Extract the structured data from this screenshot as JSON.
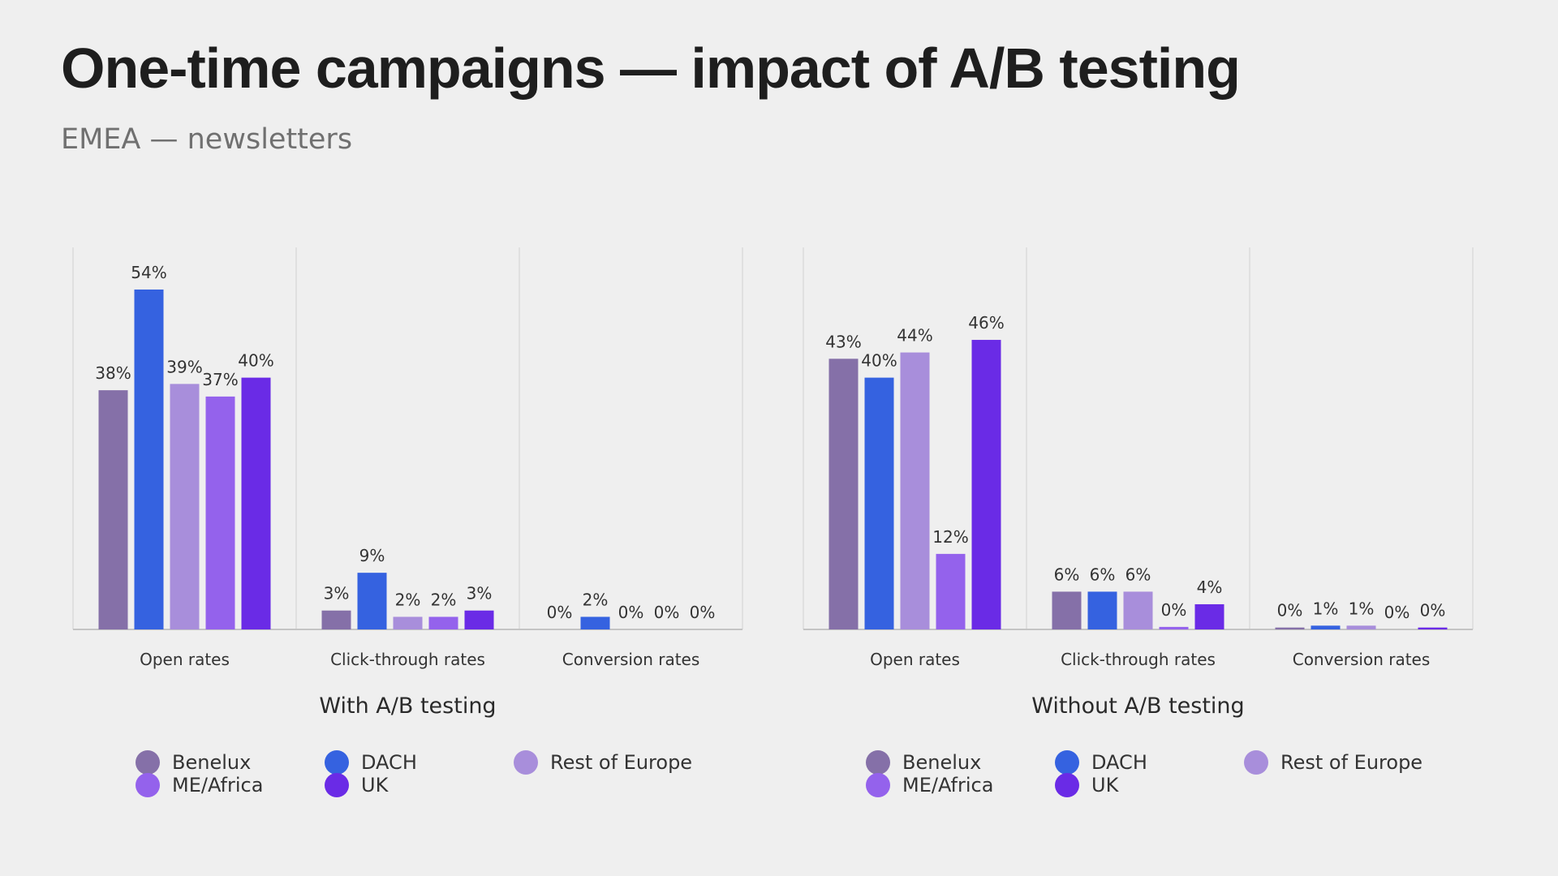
{
  "title": "One-time campaigns — impact of A/B testing",
  "subtitle": "EMEA — newsletters",
  "chart_data": [
    {
      "type": "bar",
      "panel_label": "With A/B testing",
      "categories": [
        "Open rates",
        "Click-through rates",
        "Conversion rates"
      ],
      "ylim": [
        0,
        60
      ],
      "grid": false,
      "legend_position": "bottom",
      "series": [
        {
          "name": "Benelux",
          "color": "#8570a8",
          "values": [
            38,
            3,
            0
          ],
          "labels": [
            "38%",
            "3%",
            "0%"
          ]
        },
        {
          "name": "DACH",
          "color": "#3562e0",
          "values": [
            54,
            9,
            2
          ],
          "labels": [
            "54%",
            "9%",
            "2%"
          ]
        },
        {
          "name": "Rest of Europe",
          "color": "#a88edb",
          "values": [
            39,
            2,
            0
          ],
          "labels": [
            "39%",
            "2%",
            "0%"
          ]
        },
        {
          "name": "ME/Africa",
          "color": "#9462ec",
          "values": [
            37,
            2,
            0
          ],
          "labels": [
            "37%",
            "2%",
            "0%"
          ]
        },
        {
          "name": "UK",
          "color": "#6a2be6",
          "values": [
            40,
            3,
            0
          ],
          "labels": [
            "40%",
            "3%",
            "0%"
          ]
        }
      ]
    },
    {
      "type": "bar",
      "panel_label": "Without A/B testing",
      "categories": [
        "Open rates",
        "Click-through rates",
        "Conversion rates"
      ],
      "ylim": [
        0,
        60
      ],
      "grid": false,
      "legend_position": "bottom",
      "series": [
        {
          "name": "Benelux",
          "color": "#8570a8",
          "values": [
            43,
            6,
            0.3
          ],
          "labels": [
            "43%",
            "6%",
            "0%"
          ]
        },
        {
          "name": "DACH",
          "color": "#3562e0",
          "values": [
            40,
            6,
            0.6
          ],
          "labels": [
            "40%",
            "6%",
            "1%"
          ]
        },
        {
          "name": "Rest of Europe",
          "color": "#a88edb",
          "values": [
            44,
            6,
            0.6
          ],
          "labels": [
            "44%",
            "6%",
            "1%"
          ]
        },
        {
          "name": "ME/Africa",
          "color": "#9462ec",
          "values": [
            12,
            0.4,
            0
          ],
          "labels": [
            "12%",
            "0%",
            "0%"
          ]
        },
        {
          "name": "UK",
          "color": "#6a2be6",
          "values": [
            46,
            4,
            0.3
          ],
          "labels": [
            "46%",
            "4%",
            "0%"
          ]
        }
      ]
    }
  ],
  "legend_order": [
    "Benelux",
    "DACH",
    "Rest of Europe",
    "ME/Africa",
    "UK"
  ]
}
